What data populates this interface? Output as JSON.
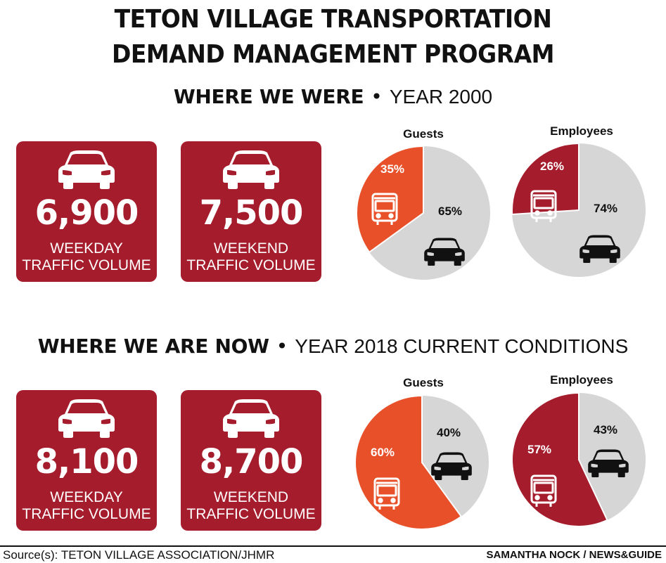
{
  "title_line1": "TETON VILLAGE TRANSPORTATION",
  "title_line2": "DEMAND MANAGEMENT PROGRAM",
  "sections": [
    {
      "heading_bold": "WHERE WE WERE",
      "heading_light": "YEAR 2000",
      "cards": [
        {
          "value": "6,900",
          "label_line1": "WEEKDAY",
          "label_line2": "TRAFFIC VOLUME"
        },
        {
          "value": "7,500",
          "label_line1": "WEEKEND",
          "label_line2": "TRAFFIC VOLUME"
        }
      ]
    },
    {
      "heading_bold": "WHERE WE ARE NOW",
      "heading_light": "YEAR 2018 CURRENT CONDITIONS",
      "cards": [
        {
          "value": "8,100",
          "label_line1": "WEEKDAY",
          "label_line2": "TRAFFIC VOLUME"
        },
        {
          "value": "8,700",
          "label_line1": "WEEKEND",
          "label_line2": "TRAFFIC VOLUME"
        }
      ]
    }
  ],
  "dot": "•",
  "source": "Source(s): TETON VILLAGE ASSOCIATION/JHMR",
  "credit": "SAMANTHA NOCK / NEWS&GUIDE",
  "colors": {
    "card_red": "#a51d2c",
    "guest_orange": "#e8502a",
    "employee_red": "#a51d2c",
    "car_share_gray": "#d6d6d6"
  },
  "icons": {
    "traffic_card": "car-icon",
    "transit_slice": "bus-icon",
    "car_slice": "car-icon"
  },
  "chart_data": [
    {
      "type": "pie",
      "title": "Guests",
      "year": "2000",
      "slices": [
        {
          "icon": "bus",
          "value": 35,
          "label": "35%",
          "color": "#e8502a"
        },
        {
          "icon": "car",
          "value": 65,
          "label": "65%",
          "color": "#d6d6d6"
        }
      ]
    },
    {
      "type": "pie",
      "title": "Employees",
      "year": "2000",
      "slices": [
        {
          "icon": "bus",
          "value": 26,
          "label": "26%",
          "color": "#a51d2c"
        },
        {
          "icon": "car",
          "value": 74,
          "label": "74%",
          "color": "#d6d6d6"
        }
      ]
    },
    {
      "type": "pie",
      "title": "Guests",
      "year": "2018",
      "slices": [
        {
          "icon": "bus",
          "value": 60,
          "label": "60%",
          "color": "#e8502a"
        },
        {
          "icon": "car",
          "value": 40,
          "label": "40%",
          "color": "#d6d6d6"
        }
      ]
    },
    {
      "type": "pie",
      "title": "Employees",
      "year": "2018",
      "slices": [
        {
          "icon": "bus",
          "value": 57,
          "label": "57%",
          "color": "#a51d2c"
        },
        {
          "icon": "car",
          "value": 43,
          "label": "43%",
          "color": "#d6d6d6"
        }
      ]
    }
  ]
}
